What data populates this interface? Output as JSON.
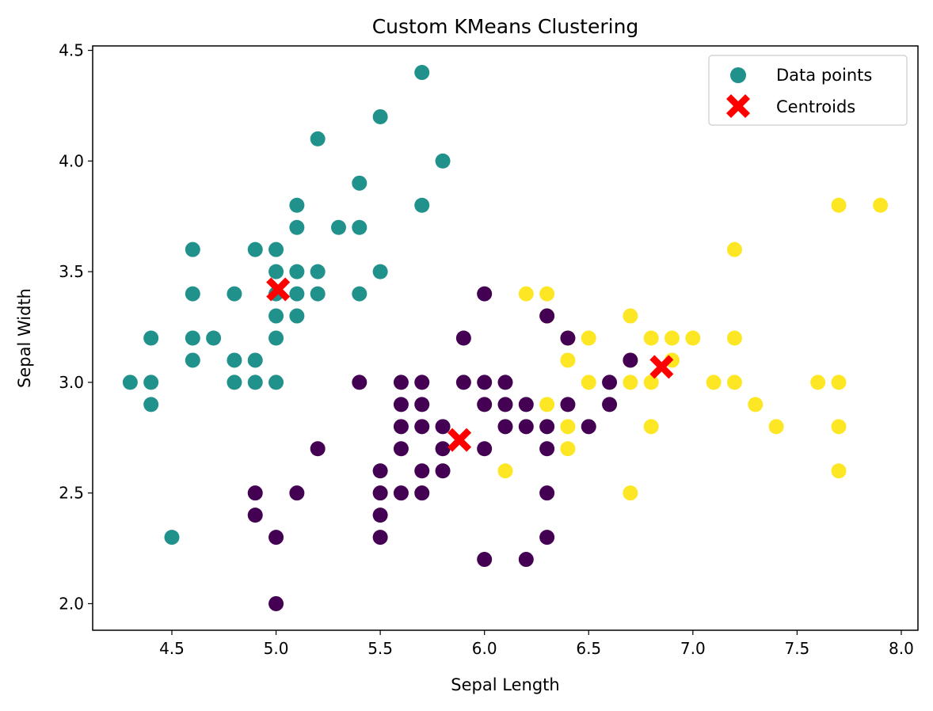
{
  "chart_data": {
    "type": "scatter",
    "title": "Custom KMeans Clustering",
    "xlabel": "Sepal Length",
    "ylabel": "Sepal Width",
    "xlim": [
      4.12,
      8.08
    ],
    "ylim": [
      1.88,
      4.52
    ],
    "xticks": [
      4.5,
      5.0,
      5.5,
      6.0,
      6.5,
      7.0,
      7.5,
      8.0
    ],
    "yticks": [
      2.0,
      2.5,
      3.0,
      3.5,
      4.0,
      4.5
    ],
    "xtick_labels": [
      "4.5",
      "5.0",
      "5.5",
      "6.0",
      "6.5",
      "7.0",
      "7.5",
      "8.0"
    ],
    "ytick_labels": [
      "2.0",
      "2.5",
      "3.0",
      "3.5",
      "4.0",
      "4.5"
    ],
    "grid": false,
    "legend_position": "top-right",
    "legend": [
      {
        "label": "Data points",
        "marker": "circle",
        "color": "#21918c"
      },
      {
        "label": "Centroids",
        "marker": "x",
        "color": "#ff0000"
      }
    ],
    "cluster_colors": {
      "0": "#440154",
      "1": "#21918c",
      "2": "#fde725"
    },
    "series": [
      {
        "cluster": 1,
        "color": "#21918c",
        "points": [
          [
            5.7,
            4.4
          ],
          [
            5.5,
            4.2
          ],
          [
            5.2,
            4.1
          ],
          [
            5.8,
            4.0
          ],
          [
            5.4,
            3.9
          ],
          [
            5.1,
            3.8
          ],
          [
            5.7,
            3.8
          ],
          [
            5.1,
            3.7
          ],
          [
            5.3,
            3.7
          ],
          [
            5.4,
            3.7
          ],
          [
            4.6,
            3.6
          ],
          [
            4.9,
            3.6
          ],
          [
            5.0,
            3.6
          ],
          [
            5.0,
            3.5
          ],
          [
            5.1,
            3.5
          ],
          [
            5.2,
            3.5
          ],
          [
            5.5,
            3.5
          ],
          [
            4.6,
            3.4
          ],
          [
            4.8,
            3.4
          ],
          [
            5.0,
            3.4
          ],
          [
            5.1,
            3.4
          ],
          [
            5.2,
            3.4
          ],
          [
            5.4,
            3.4
          ],
          [
            5.0,
            3.3
          ],
          [
            5.1,
            3.3
          ],
          [
            4.4,
            3.2
          ],
          [
            4.6,
            3.2
          ],
          [
            4.7,
            3.2
          ],
          [
            5.0,
            3.2
          ],
          [
            4.6,
            3.1
          ],
          [
            4.8,
            3.1
          ],
          [
            4.9,
            3.1
          ],
          [
            4.3,
            3.0
          ],
          [
            4.4,
            3.0
          ],
          [
            4.8,
            3.0
          ],
          [
            4.9,
            3.0
          ],
          [
            5.0,
            3.0
          ],
          [
            4.4,
            2.9
          ],
          [
            4.5,
            2.3
          ]
        ]
      },
      {
        "cluster": 0,
        "color": "#440154",
        "points": [
          [
            6.0,
            3.4
          ],
          [
            5.9,
            3.2
          ],
          [
            5.4,
            3.0
          ],
          [
            5.6,
            3.0
          ],
          [
            5.7,
            3.0
          ],
          [
            5.9,
            3.0
          ],
          [
            6.0,
            3.0
          ],
          [
            6.1,
            3.0
          ],
          [
            6.6,
            3.0
          ],
          [
            5.6,
            2.9
          ],
          [
            5.7,
            2.9
          ],
          [
            6.0,
            2.9
          ],
          [
            6.1,
            2.9
          ],
          [
            6.2,
            2.9
          ],
          [
            6.4,
            2.9
          ],
          [
            6.6,
            2.9
          ],
          [
            5.6,
            2.8
          ],
          [
            5.7,
            2.8
          ],
          [
            5.8,
            2.8
          ],
          [
            6.1,
            2.8
          ],
          [
            6.2,
            2.8
          ],
          [
            6.3,
            2.8
          ],
          [
            6.5,
            2.8
          ],
          [
            5.2,
            2.7
          ],
          [
            5.6,
            2.7
          ],
          [
            5.8,
            2.7
          ],
          [
            6.0,
            2.7
          ],
          [
            6.3,
            2.7
          ],
          [
            5.5,
            2.6
          ],
          [
            5.7,
            2.6
          ],
          [
            5.8,
            2.6
          ],
          [
            4.9,
            2.5
          ],
          [
            5.1,
            2.5
          ],
          [
            5.5,
            2.5
          ],
          [
            5.6,
            2.5
          ],
          [
            5.7,
            2.5
          ],
          [
            6.3,
            2.5
          ],
          [
            4.9,
            2.4
          ],
          [
            5.5,
            2.4
          ],
          [
            5.0,
            2.3
          ],
          [
            5.5,
            2.3
          ],
          [
            6.3,
            2.3
          ],
          [
            6.0,
            2.2
          ],
          [
            6.2,
            2.2
          ],
          [
            5.0,
            2.0
          ]
        ]
      },
      {
        "cluster": 2,
        "color": "#fde725",
        "points": [
          [
            7.7,
            3.8
          ],
          [
            7.9,
            3.8
          ],
          [
            7.2,
            3.6
          ],
          [
            6.2,
            3.4
          ],
          [
            6.3,
            3.4
          ],
          [
            6.3,
            3.3
          ],
          [
            6.7,
            3.3
          ],
          [
            6.4,
            3.2
          ],
          [
            6.5,
            3.2
          ],
          [
            6.8,
            3.2
          ],
          [
            6.9,
            3.2
          ],
          [
            7.0,
            3.2
          ],
          [
            7.2,
            3.2
          ],
          [
            6.4,
            3.1
          ],
          [
            6.7,
            3.1
          ],
          [
            6.9,
            3.1
          ],
          [
            6.5,
            3.0
          ],
          [
            6.7,
            3.0
          ],
          [
            6.8,
            3.0
          ],
          [
            7.1,
            3.0
          ],
          [
            7.2,
            3.0
          ],
          [
            7.6,
            3.0
          ],
          [
            7.7,
            3.0
          ],
          [
            6.3,
            2.9
          ],
          [
            7.3,
            2.9
          ],
          [
            6.4,
            2.8
          ],
          [
            6.8,
            2.8
          ],
          [
            7.4,
            2.8
          ],
          [
            7.7,
            2.8
          ],
          [
            6.4,
            2.7
          ],
          [
            6.1,
            2.6
          ],
          [
            7.7,
            2.6
          ],
          [
            6.7,
            2.5
          ]
        ]
      },
      {
        "cluster": 0,
        "color": "#440154",
        "points": [
          [
            6.3,
            3.3
          ],
          [
            6.4,
            3.2
          ],
          [
            6.7,
            3.1
          ]
        ]
      }
    ],
    "centroids": [
      {
        "x": 5.01,
        "y": 3.42
      },
      {
        "x": 5.88,
        "y": 2.74
      },
      {
        "x": 6.85,
        "y": 3.07
      }
    ]
  }
}
